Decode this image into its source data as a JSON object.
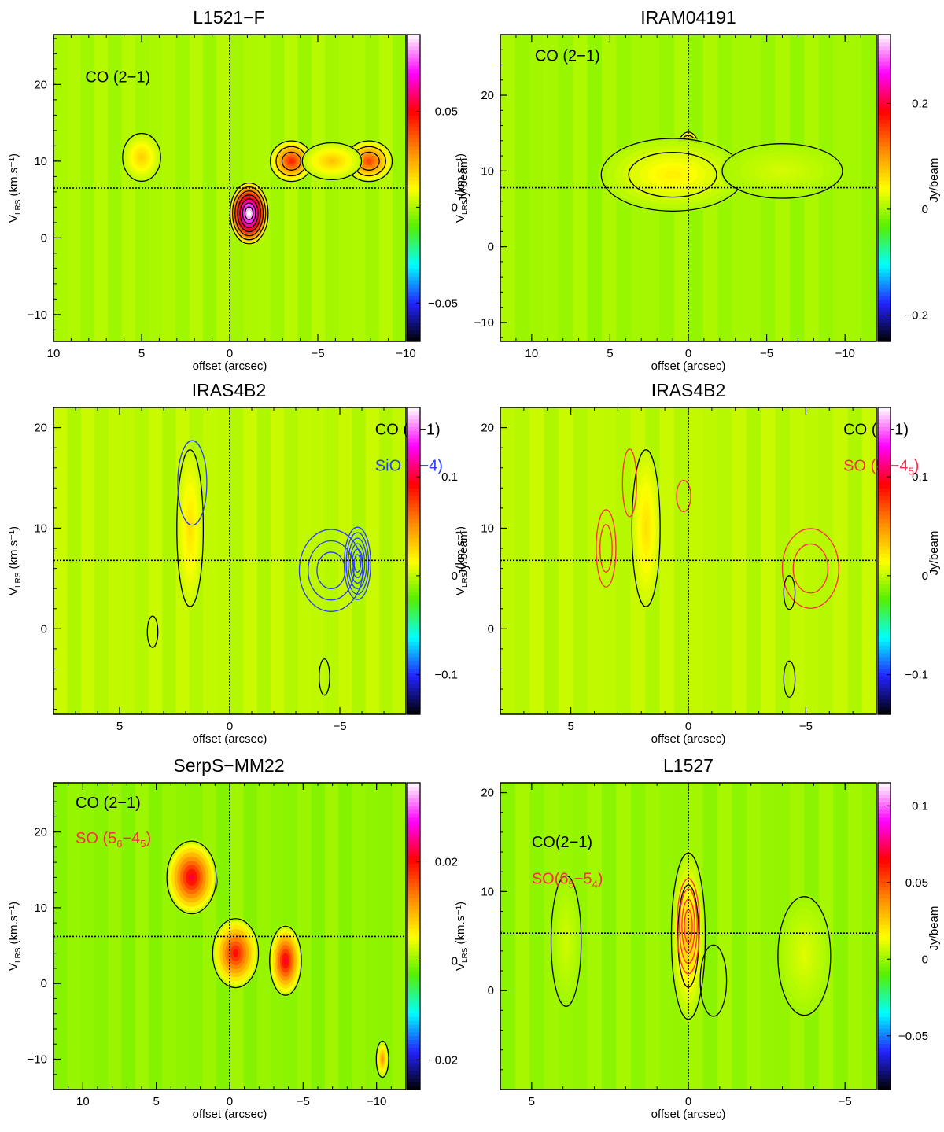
{
  "colors": {
    "background_green": "#55f000",
    "axis": "#000000",
    "co_contour": "#000000",
    "sio_contour": "#2a3bff",
    "so_contour": "#ff2a4a",
    "colormap": [
      "#000000",
      "#2222ff",
      "#00ffff",
      "#55f000",
      "#ffff00",
      "#ff8800",
      "#ff0000",
      "#ff00ff",
      "#ffffff"
    ]
  },
  "chart_data": [
    {
      "type": "heatmap",
      "title": "L1521−F",
      "xlabel": "offset (arcsec)",
      "ylabel": "V",
      "ylabel_sub": "LRS",
      "ylabel_unit": "(km.s⁻¹)",
      "xlim": [
        10,
        -10
      ],
      "ylim": [
        -13.5,
        26.5
      ],
      "xticks": [
        10,
        5,
        0,
        -5,
        -10
      ],
      "xtick_labels": [
        "10",
        "5",
        "0",
        "−5",
        "−10"
      ],
      "yticks": [
        -10,
        0,
        10,
        20
      ],
      "ytick_labels": [
        "−10",
        "0",
        "10",
        "20"
      ],
      "crosshair": {
        "x": 0,
        "y": 6.5
      },
      "colorbar": {
        "label": "Jy/beam",
        "range": [
          -0.07,
          0.09
        ],
        "ticks": [
          -0.05,
          0,
          0.05
        ],
        "tick_labels": [
          "−0.05",
          "0",
          "0.05"
        ]
      },
      "line_labels": [
        {
          "text": "CO (2−1)",
          "color": "co",
          "x": 8.2,
          "y": 20.3
        }
      ],
      "emission": [
        {
          "x": -1.1,
          "y": 3.2,
          "sx": 0.9,
          "sy": 3.3,
          "amp": 0.095,
          "levels": 7,
          "contour": "co"
        },
        {
          "x": -3.5,
          "y": 10.0,
          "sx": 1.0,
          "sy": 2.2,
          "amp": 0.045,
          "levels": 3,
          "contour": "co"
        },
        {
          "x": -7.9,
          "y": 10.0,
          "sx": 1.1,
          "sy": 2.2,
          "amp": 0.04,
          "levels": 3,
          "contour": "co"
        },
        {
          "x": -5.8,
          "y": 10.0,
          "sx": 1.4,
          "sy": 2.0,
          "amp": 0.02,
          "levels": 1,
          "contour": "co"
        },
        {
          "x": 5.0,
          "y": 10.5,
          "sx": 0.9,
          "sy": 2.6,
          "amp": 0.018,
          "levels": 1,
          "contour": "co"
        }
      ]
    },
    {
      "type": "heatmap",
      "title": "IRAM04191",
      "xlabel": "offset (arcsec)",
      "ylabel": "V",
      "ylabel_sub": "LRS",
      "ylabel_unit": "(km.s⁻¹)",
      "xlim": [
        12,
        -12
      ],
      "ylim": [
        -12.5,
        28
      ],
      "xticks": [
        10,
        5,
        0,
        -5,
        -10
      ],
      "xtick_labels": [
        "10",
        "5",
        "0",
        "−5",
        "−10"
      ],
      "yticks": [
        -10,
        0,
        10,
        20
      ],
      "ytick_labels": [
        "−10",
        "0",
        "10",
        "20"
      ],
      "crosshair": {
        "x": 0,
        "y": 7.8
      },
      "colorbar": {
        "label": "Jy/beam",
        "range": [
          -0.25,
          0.33
        ],
        "ticks": [
          -0.2,
          0,
          0.2
        ],
        "tick_labels": [
          "−0.2",
          "0",
          "0.2"
        ]
      },
      "line_labels": [
        {
          "text": "CO (2−1)",
          "color": "co",
          "x": 9.8,
          "y": 24.5
        }
      ],
      "emission": [
        {
          "x": 0.0,
          "y": 11.3,
          "sx": 0.7,
          "sy": 3.2,
          "amp": 0.32,
          "levels": 8,
          "contour": "co"
        },
        {
          "x": 2.5,
          "y": 10.0,
          "sx": 1.6,
          "sy": 2.6,
          "amp": 0.16,
          "levels": 6,
          "contour": "co"
        },
        {
          "x": 1.0,
          "y": 9.5,
          "sx": 3.8,
          "sy": 4.0,
          "amp": 0.05,
          "levels": 2,
          "contour": "co"
        },
        {
          "x": -6.0,
          "y": 10.0,
          "sx": 3.2,
          "sy": 3.0,
          "amp": 0.022,
          "levels": 1,
          "contour": "co"
        }
      ]
    },
    {
      "type": "heatmap",
      "title": "IRAS4B2",
      "xlabel": "offset (arcsec)",
      "ylabel": "V",
      "ylabel_sub": "LRS",
      "ylabel_unit": "(km.s⁻¹)",
      "xlim": [
        8,
        -8
      ],
      "ylim": [
        -8.5,
        22
      ],
      "xticks": [
        5,
        0,
        -5
      ],
      "xtick_labels": [
        "5",
        "0",
        "−5"
      ],
      "yticks": [
        0,
        10,
        20
      ],
      "ytick_labels": [
        "0",
        "10",
        "20"
      ],
      "crosshair": {
        "x": 0,
        "y": 6.8
      },
      "colorbar": {
        "label": "Jy/beam",
        "range": [
          -0.14,
          0.17
        ],
        "ticks": [
          -0.1,
          0,
          0.1
        ],
        "tick_labels": [
          "−0.1",
          "0",
          "0.1"
        ]
      },
      "line_labels": [
        {
          "text": "CO (2−1)",
          "color": "co",
          "x": -6.6,
          "y": 19.3
        },
        {
          "text": "SiO (5−4)",
          "color": "sio",
          "x": -6.6,
          "y": 15.7
        }
      ],
      "emission": [
        {
          "x": 1.8,
          "y": 10.0,
          "sx": 0.5,
          "sy": 6.5,
          "amp": 0.025,
          "levels": 1,
          "contour": "co"
        },
        {
          "x": 1.7,
          "y": 14.5,
          "sx": 0.55,
          "sy": 3.5,
          "amp": 0.0,
          "levels": 1,
          "contour": "sio"
        },
        {
          "x": -5.8,
          "y": 6.5,
          "sx": 0.5,
          "sy": 3.0,
          "amp": 0.0,
          "levels": 6,
          "contour": "sio"
        },
        {
          "x": -4.6,
          "y": 5.8,
          "sx": 1.2,
          "sy": 3.4,
          "amp": 0.0,
          "levels": 3,
          "contour": "sio"
        },
        {
          "x": -4.3,
          "y": -4.8,
          "sx": 0.2,
          "sy": 1.5,
          "amp": 0.0,
          "levels": 1,
          "contour": "co"
        },
        {
          "x": 3.5,
          "y": -0.3,
          "sx": 0.2,
          "sy": 1.3,
          "amp": 0.0,
          "levels": 1,
          "contour": "co"
        }
      ]
    },
    {
      "type": "heatmap",
      "title": "IRAS4B2",
      "xlabel": "offset (arcsec)",
      "ylabel": "V",
      "ylabel_sub": "LRS",
      "ylabel_unit": "(km.s⁻¹)",
      "xlim": [
        8,
        -8
      ],
      "ylim": [
        -8.5,
        22
      ],
      "xticks": [
        5,
        0,
        -5
      ],
      "xtick_labels": [
        "5",
        "0",
        "−5"
      ],
      "yticks": [
        0,
        10,
        20
      ],
      "ytick_labels": [
        "0",
        "10",
        "20"
      ],
      "crosshair": {
        "x": 0,
        "y": 6.8
      },
      "colorbar": {
        "label": "Jy/beam",
        "range": [
          -0.14,
          0.17
        ],
        "ticks": [
          -0.1,
          0,
          0.1
        ],
        "tick_labels": [
          "−0.1",
          "0",
          "0.1"
        ]
      },
      "line_labels": [
        {
          "text": "CO (2−1)",
          "color": "co",
          "x": -6.6,
          "y": 19.3
        },
        {
          "text": "SO (5",
          "sub": "6",
          "text2": "−4",
          "sub2": "5",
          "text3": ")",
          "color": "so",
          "x": -6.6,
          "y": 15.7
        }
      ],
      "emission": [
        {
          "x": 1.8,
          "y": 10.0,
          "sx": 0.5,
          "sy": 6.5,
          "amp": 0.025,
          "levels": 1,
          "contour": "co"
        },
        {
          "x": 3.5,
          "y": 8.0,
          "sx": 0.35,
          "sy": 3.2,
          "amp": 0.0,
          "levels": 2,
          "contour": "so"
        },
        {
          "x": 2.5,
          "y": 14.5,
          "sx": 0.25,
          "sy": 2.8,
          "amp": 0.0,
          "levels": 1,
          "contour": "so"
        },
        {
          "x": 0.2,
          "y": 13.2,
          "sx": 0.25,
          "sy": 1.3,
          "amp": 0.0,
          "levels": 1,
          "contour": "so"
        },
        {
          "x": -5.2,
          "y": 6.0,
          "sx": 1.0,
          "sy": 3.3,
          "amp": 0.0,
          "levels": 2,
          "contour": "so"
        },
        {
          "x": -4.3,
          "y": -5.0,
          "sx": 0.2,
          "sy": 1.5,
          "amp": 0.0,
          "levels": 1,
          "contour": "co"
        },
        {
          "x": -4.3,
          "y": 3.6,
          "sx": 0.2,
          "sy": 1.4,
          "amp": 0.0,
          "levels": 1,
          "contour": "co"
        }
      ]
    },
    {
      "type": "heatmap",
      "title": "SerpS−MM22",
      "xlabel": "offset (arcsec)",
      "ylabel": "V",
      "ylabel_sub": "LRS",
      "ylabel_unit": "(km.s⁻¹)",
      "xlim": [
        12,
        -12
      ],
      "ylim": [
        -14,
        26.5
      ],
      "xticks": [
        10,
        5,
        0,
        -5,
        -10
      ],
      "xtick_labels": [
        "10",
        "5",
        "0",
        "−5",
        "−10"
      ],
      "yticks": [
        -10,
        0,
        10,
        20
      ],
      "ytick_labels": [
        "−10",
        "0",
        "10",
        "20"
      ],
      "crosshair": {
        "x": 0,
        "y": 6.2
      },
      "colorbar": {
        "label": "",
        "range": [
          -0.026,
          0.036
        ],
        "ticks": [
          -0.02,
          0,
          0.02
        ],
        "tick_labels": [
          "−0.02",
          "0",
          "0.02"
        ]
      },
      "line_labels": [
        {
          "text": "CO (2−1)",
          "color": "co",
          "x": 10.5,
          "y": 23.2
        },
        {
          "text": "SO (5",
          "sub": "6",
          "text2": "−4",
          "sub2": "5",
          "text3": ")",
          "color": "so",
          "x": 10.5,
          "y": 18.5
        }
      ],
      "emission": [
        {
          "x": 1.7,
          "y": 13.5,
          "sx": 0.7,
          "sy": 2.0,
          "amp": 0.036,
          "levels": 2,
          "contour": "co"
        },
        {
          "x": 2.6,
          "y": 14.0,
          "sx": 1.4,
          "sy": 4.0,
          "amp": 0.022,
          "levels": 1,
          "contour": "co"
        },
        {
          "x": -0.1,
          "y": 3.0,
          "sx": 0.45,
          "sy": 2.2,
          "amp": 0.036,
          "levels": 2,
          "contour": "co"
        },
        {
          "x": -0.4,
          "y": 4.0,
          "sx": 1.3,
          "sy": 3.8,
          "amp": 0.02,
          "levels": 1,
          "contour": "co"
        },
        {
          "x": -3.8,
          "y": 3.0,
          "sx": 0.9,
          "sy": 3.8,
          "amp": 0.022,
          "levels": 1,
          "contour": "co"
        },
        {
          "x": -10.4,
          "y": -10.0,
          "sx": 0.35,
          "sy": 2.0,
          "amp": 0.012,
          "levels": 1,
          "contour": "co"
        }
      ]
    },
    {
      "type": "heatmap",
      "title": "L1527",
      "xlabel": "offset (arcsec)",
      "ylabel": "V",
      "ylabel_sub": "LRS",
      "ylabel_unit": "(km.s⁻¹)",
      "xlim": [
        6,
        -6
      ],
      "ylim": [
        -10,
        21
      ],
      "xticks": [
        5,
        0,
        -5
      ],
      "xtick_labels": [
        "5",
        "0",
        "−5"
      ],
      "yticks": [
        0,
        10,
        20
      ],
      "ytick_labels": [
        "0",
        "10",
        "20"
      ],
      "crosshair": {
        "x": 0,
        "y": 5.8
      },
      "colorbar": {
        "label": "Jy/beam",
        "range": [
          -0.085,
          0.115
        ],
        "ticks": [
          -0.05,
          0,
          0.05,
          0.1
        ],
        "tick_labels": [
          "−0.05",
          "0",
          "0.05",
          "0.1"
        ]
      },
      "line_labels": [
        {
          "text": "CO(2−1)",
          "color": "co",
          "x": 5.0,
          "y": 14.5
        },
        {
          "text": "SO(6",
          "sub": "5",
          "text2": "−5",
          "sub2": "4",
          "text3": ")",
          "color": "so",
          "x": 5.0,
          "y": 10.8
        }
      ],
      "emission": [
        {
          "x": 0.05,
          "y": 6.0,
          "sx": 0.22,
          "sy": 4.2,
          "amp": 0.1,
          "levels": 6,
          "contour": "co"
        },
        {
          "x": 0.0,
          "y": 5.5,
          "sx": 0.45,
          "sy": 7.0,
          "amp": 0.03,
          "levels": 2,
          "contour": "co"
        },
        {
          "x": -3.6,
          "y": 3.0,
          "sx": 0.28,
          "sy": 2.6,
          "amp": 0.03,
          "levels": 3,
          "contour": "co"
        },
        {
          "x": -3.7,
          "y": 3.5,
          "sx": 0.7,
          "sy": 5.0,
          "amp": 0.01,
          "levels": 1,
          "contour": "co"
        },
        {
          "x": 3.9,
          "y": 5.0,
          "sx": 0.4,
          "sy": 5.5,
          "amp": 0.008,
          "levels": 1,
          "contour": "co"
        },
        {
          "x": -0.8,
          "y": 1.0,
          "sx": 0.35,
          "sy": 3.0,
          "amp": 0.0,
          "levels": 1,
          "contour": "co"
        },
        {
          "x": 0.0,
          "y": 6.5,
          "sx": 0.3,
          "sy": 4.0,
          "amp": 0.0,
          "levels": 4,
          "contour": "so"
        }
      ]
    }
  ]
}
